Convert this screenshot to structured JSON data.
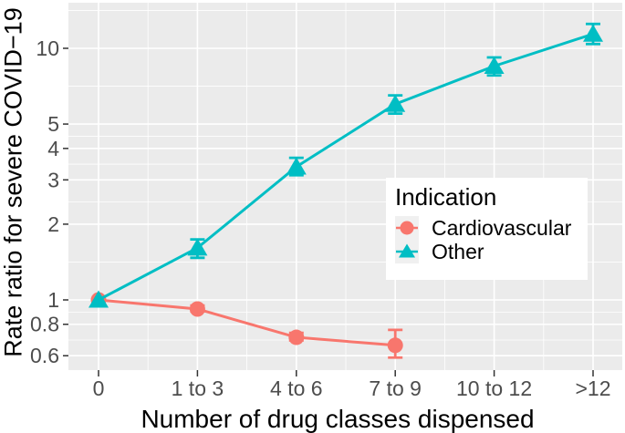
{
  "figure": {
    "background": "#FFFFFF",
    "panel_background": "#EBEBEB",
    "grid_color": "#FFFFFF",
    "axis_tick_color": "#333333",
    "tick_label_color": "#4D4D4D",
    "axis_title_color": "#000000",
    "legend_background": "#FFFFFF",
    "legend_key_background": "#F0F0F0"
  },
  "chart_data": {
    "type": "line",
    "title": "",
    "xlabel": "Number of drug classes dispensed",
    "ylabel": "Rate ratio for severe COVID−19",
    "categories": [
      "0",
      "1 to 3",
      "4 to 6",
      "7 to 9",
      "10 to 12",
      ">12"
    ],
    "y_scale": "log10",
    "y_breaks": [
      0.6,
      0.8,
      1,
      2,
      3,
      4,
      5,
      10
    ],
    "y_tick_labels": [
      "0.6",
      "0.8",
      "1",
      "2",
      "3",
      "4",
      "5",
      "10"
    ],
    "ylim": [
      0.53,
      15
    ],
    "grid": true,
    "legend": {
      "title": "Indication",
      "position": "inside-right"
    },
    "series": [
      {
        "name": "Cardiovascular",
        "color": "#F8766D",
        "marker": "circle",
        "values": [
          1,
          0.92,
          0.71,
          0.66,
          null,
          null
        ],
        "ci_low": [
          1,
          0.9,
          0.69,
          0.59,
          null,
          null
        ],
        "ci_high": [
          1,
          0.95,
          0.74,
          0.76,
          null,
          null
        ]
      },
      {
        "name": "Other",
        "color": "#00BEC4",
        "marker": "triangle",
        "values": [
          1,
          1.61,
          3.38,
          6.0,
          8.5,
          11.4
        ],
        "ci_low": [
          1,
          1.47,
          3.13,
          5.5,
          7.8,
          10.4
        ],
        "ci_high": [
          1,
          1.74,
          3.67,
          6.5,
          9.2,
          12.5
        ]
      }
    ]
  }
}
